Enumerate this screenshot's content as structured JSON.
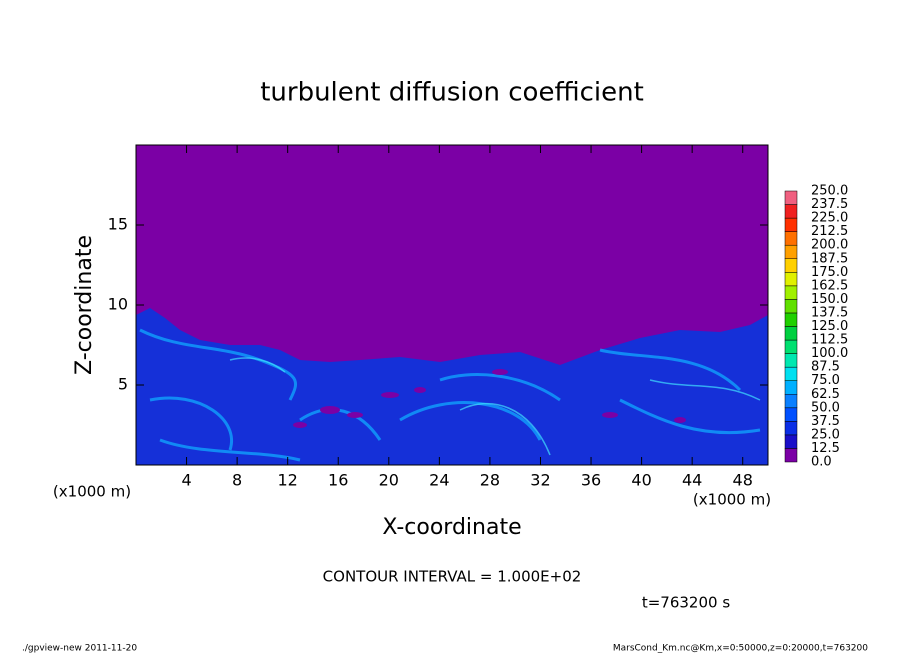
{
  "chart_data": {
    "type": "contour",
    "title": "turbulent diffusion coefficient",
    "xlabel": "X-coordinate",
    "ylabel": "Z-coordinate",
    "x_unit_labels": [
      "(x1000 m)",
      "(x1000 m)"
    ],
    "annotation": "CONTOUR INTERVAL = 1.000E+02",
    "time_label": "t=763200 s",
    "footer_left": "./gpview-new  2011-11-20",
    "footer_right": "MarsCond_Km.nc@Km,x=0:50000,z=0:20000,t=763200",
    "xlim": [
      0,
      50
    ],
    "xticks": [
      4,
      8,
      12,
      16,
      20,
      24,
      28,
      32,
      36,
      40,
      44,
      48
    ],
    "ylim": [
      0,
      20
    ],
    "yticks": [
      5,
      10,
      15
    ],
    "colorbar": {
      "levels": [
        {
          "value": 0,
          "label": "0.0"
        },
        12.5,
        {
          "value": 25,
          "label": "25.0"
        },
        37.5,
        {
          "value": 50,
          "label": "50.0"
        },
        62.5,
        {
          "value": 75,
          "label": "75.0"
        },
        87.5,
        {
          "value": 100,
          "label": "100.0"
        },
        112.5,
        {
          "value": 125,
          "label": "125.0"
        },
        137.5,
        {
          "value": 150,
          "label": "150.0"
        },
        162.5,
        {
          "value": 175,
          "label": "175.0"
        },
        187.5,
        {
          "value": 200,
          "label": "200.0"
        },
        212.5,
        {
          "value": 225,
          "label": "225.0"
        },
        237.5,
        {
          "value": 250,
          "label": "250.0"
        }
      ],
      "colors": [
        "#7b00a5",
        "#1a0ec8",
        "#0a2ee6",
        "#0050ff",
        "#0a80ff",
        "#00b0ff",
        "#00e0f0",
        "#00e8b0",
        "#00e070",
        "#00d040",
        "#20d000",
        "#60e000",
        "#a0f000",
        "#e0f000",
        "#ffd000",
        "#ffa000",
        "#ff7000",
        "#ff3000",
        "#f02020",
        "#f06080"
      ]
    }
  }
}
